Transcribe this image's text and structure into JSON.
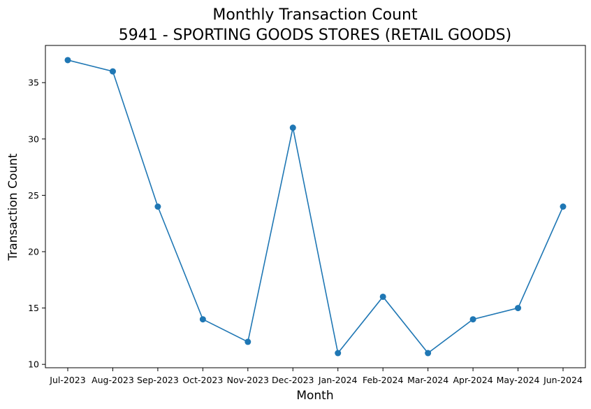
{
  "chart_data": {
    "type": "line",
    "title": [
      "Monthly Transaction Count",
      "5941 - SPORTING GOODS STORES (RETAIL GOODS)"
    ],
    "xlabel": "Month",
    "ylabel": "Transaction Count",
    "categories": [
      "Jul-2023",
      "Aug-2023",
      "Sep-2023",
      "Oct-2023",
      "Nov-2023",
      "Dec-2023",
      "Jan-2024",
      "Feb-2024",
      "Mar-2024",
      "Apr-2024",
      "May-2024",
      "Jun-2024"
    ],
    "series": [
      {
        "values": [
          37,
          36,
          24,
          14,
          12,
          31,
          11,
          16,
          11,
          14,
          15,
          24
        ],
        "color": "#1f77b4",
        "marker": "circle"
      }
    ],
    "ylim": [
      9.7,
      38.3
    ],
    "yticks": [
      10,
      15,
      20,
      25,
      30,
      35
    ],
    "grid": false,
    "legend": "none"
  }
}
